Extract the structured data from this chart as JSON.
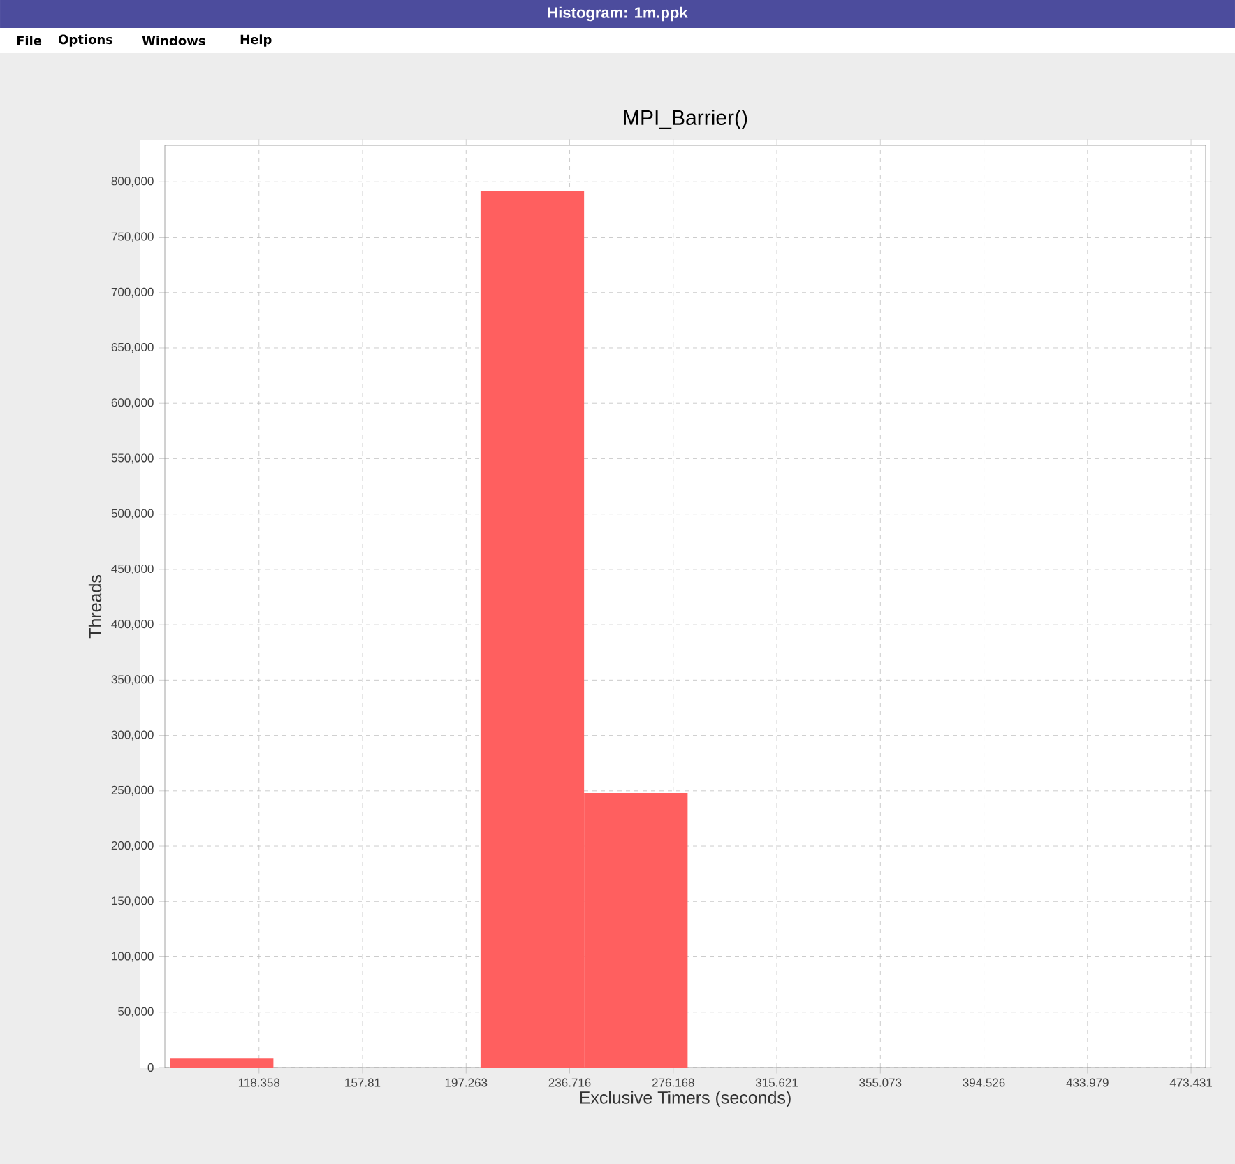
{
  "chart_data": {
    "type": "histogram",
    "title": "MPI_Barrier()",
    "xlabel": "Exclusive Timers (seconds)",
    "ylabel": "Threads",
    "annotations": [
      "Histogram: 1m.ppk",
      "File",
      "Options",
      "Windows",
      "Help"
    ],
    "bins": [
      84.4,
      123.85,
      163.3,
      202.75,
      242.2,
      281.65,
      321.1,
      360.55,
      400.0,
      439.45,
      478.9
    ],
    "values": [
      8000,
      0,
      0,
      792000,
      248000,
      0,
      0,
      0,
      0,
      0
    ],
    "color": "#ff5f5f",
    "xlim": [
      82.5,
      479
    ],
    "ylim": [
      0,
      833000
    ],
    "xticks": [
      118.358,
      157.81,
      197.263,
      236.716,
      276.168,
      315.621,
      355.073,
      394.526,
      433.979,
      473.431
    ],
    "yticks": [
      {
        "value": 0,
        "label": "0"
      },
      {
        "value": 50000,
        "label": "50,000"
      },
      {
        "value": 100000,
        "label": "100,000"
      },
      {
        "value": 150000,
        "label": "150,000"
      },
      {
        "value": 200000,
        "label": "200,000"
      },
      {
        "value": 250000,
        "label": "250,000"
      },
      {
        "value": 300000,
        "label": "300,000"
      },
      {
        "value": 350000,
        "label": "350,000"
      },
      {
        "value": 400000,
        "label": "400,000"
      },
      {
        "value": 450000,
        "label": "450,000"
      },
      {
        "value": 500000,
        "label": "500,000"
      },
      {
        "value": 550000,
        "label": "550,000"
      },
      {
        "value": 600000,
        "label": "600,000"
      },
      {
        "value": 650000,
        "label": "650,000"
      },
      {
        "value": 700000,
        "label": "700,000"
      },
      {
        "value": 750000,
        "label": "750,000"
      },
      {
        "value": 800000,
        "label": "800,000"
      }
    ],
    "grid": true
  }
}
